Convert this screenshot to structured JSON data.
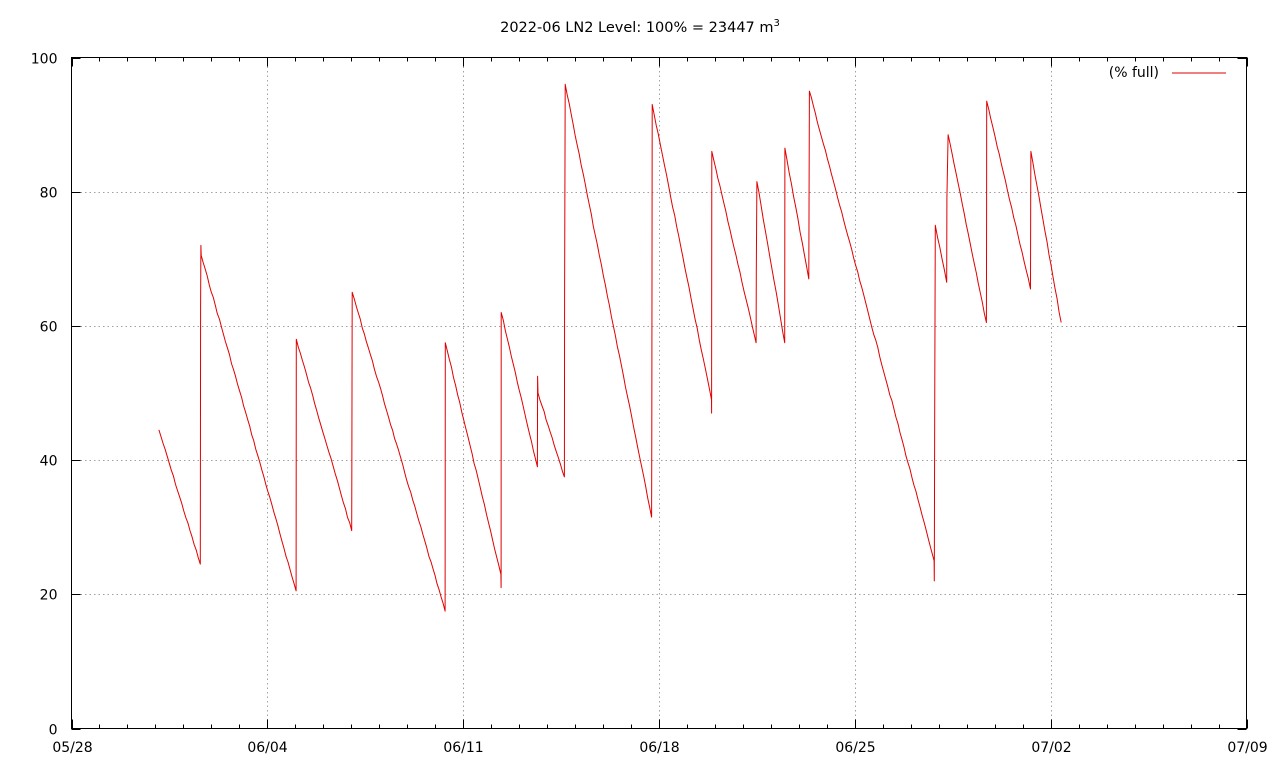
{
  "chart_data": {
    "type": "line",
    "title": "2022-06 LN2 Level: 100% = 23447 m",
    "title_superscript": "3",
    "xlabel": "",
    "ylabel": "",
    "x_range": [
      "2022-05-28",
      "2022-07-09"
    ],
    "ylim": [
      0,
      100
    ],
    "x_ticks": [
      {
        "date": "2022-05-28",
        "label": "05/28"
      },
      {
        "date": "2022-06-04",
        "label": "06/04"
      },
      {
        "date": "2022-06-11",
        "label": "06/11"
      },
      {
        "date": "2022-06-18",
        "label": "06/18"
      },
      {
        "date": "2022-06-25",
        "label": "06/25"
      },
      {
        "date": "2022-07-02",
        "label": "07/02"
      },
      {
        "date": "2022-07-09",
        "label": "07/09"
      }
    ],
    "y_ticks": [
      0,
      20,
      40,
      60,
      80,
      100
    ],
    "grid": true,
    "legend_position": "top-right",
    "series": [
      {
        "name": "(% full)",
        "color": "#e00000",
        "points": [
          [
            "2022-05-31 03:00",
            44.5
          ],
          [
            "2022-06-01 14:30",
            24.5
          ],
          [
            "2022-06-01 14:45",
            63.0
          ],
          [
            "2022-06-01 15:00",
            72.0
          ],
          [
            "2022-06-01 15:15",
            70.5
          ],
          [
            "2022-06-05 00:40",
            20.5
          ],
          [
            "2022-06-05 00:50",
            58.0
          ],
          [
            "2022-06-07 00:20",
            29.5
          ],
          [
            "2022-06-07 00:30",
            36.0
          ],
          [
            "2022-06-07 00:50",
            65.0
          ],
          [
            "2022-06-10 08:30",
            17.5
          ],
          [
            "2022-06-10 08:40",
            57.5
          ],
          [
            "2022-06-12 08:20",
            23.0
          ],
          [
            "2022-06-12 08:30",
            21.0
          ],
          [
            "2022-06-12 08:40",
            62.0
          ],
          [
            "2022-06-13 15:40",
            39.0
          ],
          [
            "2022-06-13 15:50",
            52.5
          ],
          [
            "2022-06-13 16:10",
            50.0
          ],
          [
            "2022-06-14 14:50",
            37.5
          ],
          [
            "2022-06-14 15:00",
            65.0
          ],
          [
            "2022-06-14 15:30",
            96.0
          ],
          [
            "2022-06-17 17:40",
            31.5
          ],
          [
            "2022-06-17 17:50",
            44.0
          ],
          [
            "2022-06-17 18:10",
            93.0
          ],
          [
            "2022-06-19 21:00",
            49.0
          ],
          [
            "2022-06-19 21:10",
            47.0
          ],
          [
            "2022-06-19 21:20",
            86.0
          ],
          [
            "2022-06-21 11:20",
            57.5
          ],
          [
            "2022-06-21 11:30",
            68.0
          ],
          [
            "2022-06-21 12:00",
            81.5
          ],
          [
            "2022-06-22 11:50",
            57.5
          ],
          [
            "2022-06-22 12:00",
            86.5
          ],
          [
            "2022-06-23 08:30",
            67.0
          ],
          [
            "2022-06-23 09:00",
            95.0
          ],
          [
            "2022-06-27 20:00",
            25.0
          ],
          [
            "2022-06-27 20:10",
            22.0
          ],
          [
            "2022-06-27 20:30",
            47.0
          ],
          [
            "2022-06-27 21:00",
            75.0
          ],
          [
            "2022-06-28 06:50",
            66.5
          ],
          [
            "2022-06-28 07:00",
            79.0
          ],
          [
            "2022-06-28 08:00",
            88.5
          ],
          [
            "2022-06-29 16:50",
            60.5
          ],
          [
            "2022-06-29 17:00",
            77.0
          ],
          [
            "2022-06-29 17:10",
            93.5
          ],
          [
            "2022-07-01 06:40",
            65.5
          ],
          [
            "2022-07-01 06:50",
            79.0
          ],
          [
            "2022-07-01 07:00",
            86.0
          ],
          [
            "2022-07-02 09:00",
            60.5
          ]
        ]
      }
    ]
  }
}
